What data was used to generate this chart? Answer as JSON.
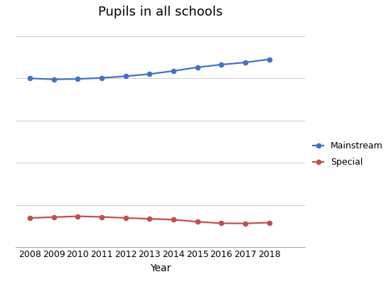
{
  "title": "Pupils in all schools",
  "xlabel": "Year",
  "years": [
    2008,
    2009,
    2010,
    2011,
    2012,
    2013,
    2014,
    2015,
    2016,
    2017,
    2018
  ],
  "blue_values": [
    8.0,
    7.95,
    7.97,
    8.02,
    8.1,
    8.2,
    8.35,
    8.52,
    8.65,
    8.75,
    8.9
  ],
  "red_values": [
    1.38,
    1.42,
    1.46,
    1.43,
    1.38,
    1.34,
    1.3,
    1.2,
    1.13,
    1.12,
    1.16
  ],
  "blue_color": "#4472C4",
  "red_color": "#C0504D",
  "line_width": 1.6,
  "marker_size": 4.5,
  "bg_color": "#FFFFFF",
  "grid_color": "#D0D0D0",
  "title_fontsize": 13,
  "xlabel_fontsize": 10,
  "tick_fontsize": 9,
  "ylim_min": 0,
  "ylim_max": 10.5,
  "ytick_values": [
    0,
    2,
    4,
    6,
    8,
    10
  ],
  "xlim_min": 2007.4,
  "xlim_max": 2019.5
}
